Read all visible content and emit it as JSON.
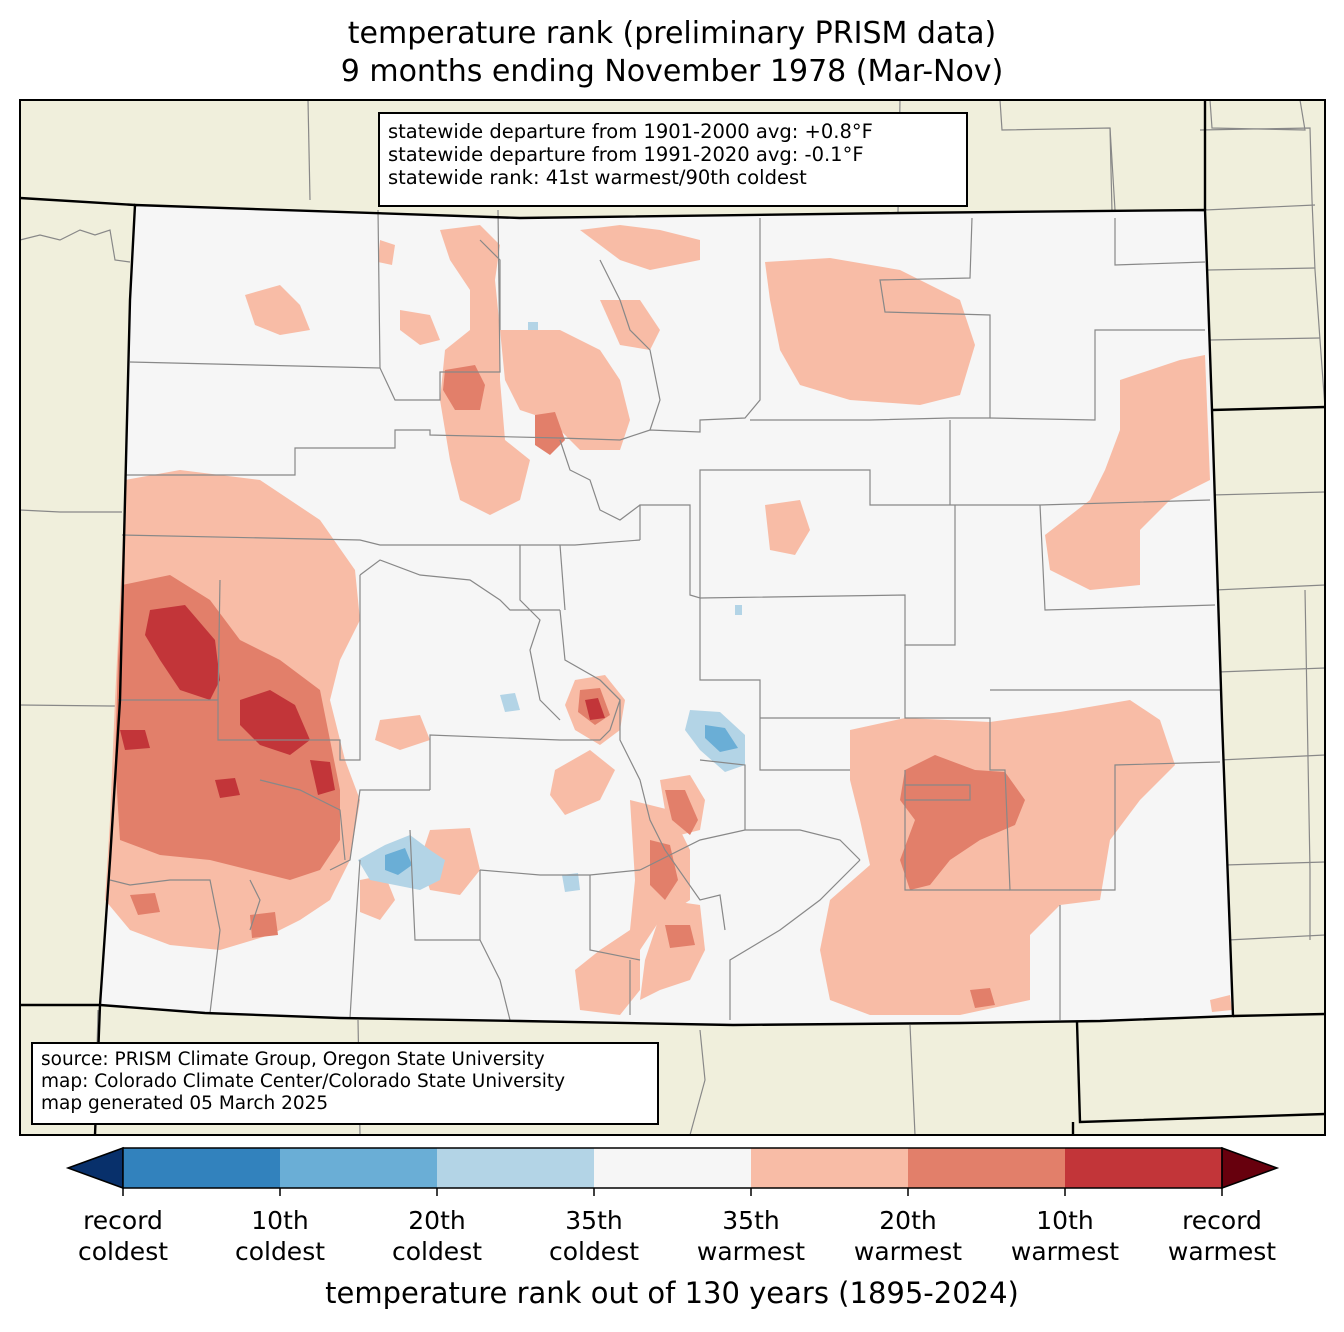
{
  "title": {
    "line1": "temperature rank (preliminary PRISM data)",
    "line2": "9 months ending November 1978 (Mar-Nov)"
  },
  "stats": {
    "line1": "statewide departure from 1901-2000 avg: +0.8°F",
    "line2": "statewide departure from 1991-2020 avg: -0.1°F",
    "line3": "statewide rank: 41st warmest/90th coldest"
  },
  "source": {
    "line1": "source: PRISM Climate Group, Oregon State University",
    "line2": "map: Colorado Climate Center/Colorado State University",
    "line3": "map generated 05 March 2025"
  },
  "colorbar": {
    "label": "temperature rank out of 130 years (1895-2024)",
    "ticks": [
      {
        "line1": "record",
        "line2": "coldest"
      },
      {
        "line1": "10th",
        "line2": "coldest"
      },
      {
        "line1": "20th",
        "line2": "coldest"
      },
      {
        "line1": "35th",
        "line2": "coldest"
      },
      {
        "line1": "35th",
        "line2": "warmest"
      },
      {
        "line1": "20th",
        "line2": "warmest"
      },
      {
        "line1": "10th",
        "line2": "warmest"
      },
      {
        "line1": "record",
        "line2": "warmest"
      }
    ],
    "colors": [
      "#08306b",
      "#3282bd",
      "#6aaed6",
      "#b3d4e6",
      "#f6f6f6",
      "#f8bca6",
      "#e27f6a",
      "#c23539",
      "#67000d"
    ]
  },
  "map_colors": {
    "ocean_land": "#f0efdc",
    "state_fill": "#f6f6f6",
    "near_normal": "#f6f6f6",
    "warm_35": "#f8bca6",
    "warm_20": "#e27f6a",
    "warm_10": "#c23539",
    "cold_35": "#b3d4e6",
    "cold_20": "#6aaed6"
  }
}
